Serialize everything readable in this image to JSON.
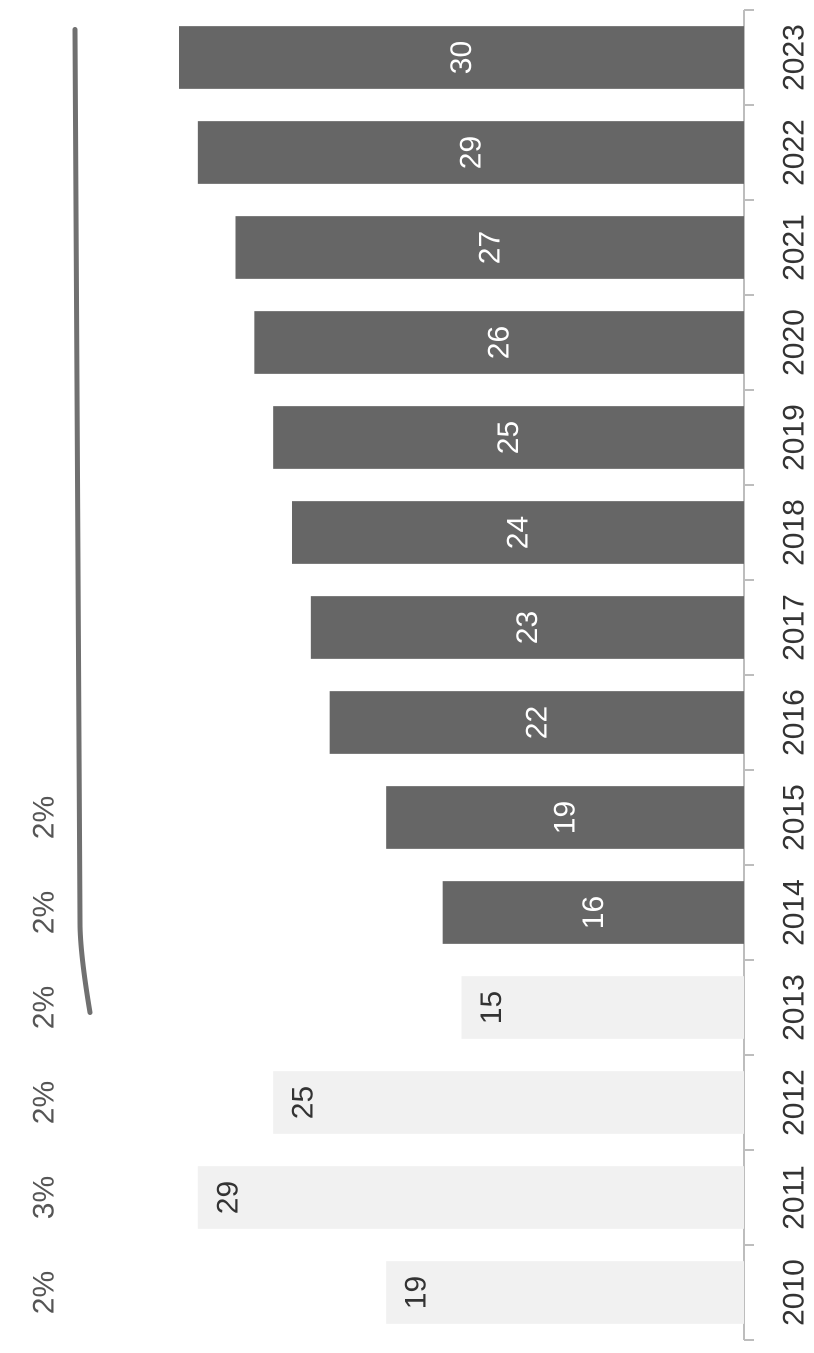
{
  "chart_data": {
    "type": "bar",
    "orientation": "rotated-90",
    "categories": [
      "2010",
      "2011",
      "2012",
      "2013",
      "2014",
      "2015",
      "2016",
      "2017",
      "2018",
      "2019",
      "2020",
      "2021",
      "2022",
      "2023"
    ],
    "series": [
      {
        "values": [
          19,
          29,
          25,
          15,
          16,
          19,
          22,
          23,
          24,
          25,
          26,
          27,
          29,
          30
        ],
        "color": "#666666"
      },
      {
        "values": [
          "2%",
          "3%",
          "2%",
          "2%",
          "2%",
          "2%",
          null,
          null,
          null,
          null,
          null,
          null,
          null,
          null
        ],
        "color": "#707070",
        "style": "line"
      }
    ],
    "faded_categories": [
      "2010",
      "2011",
      "2012",
      "2013"
    ],
    "ylim": [
      0,
      30
    ],
    "grid": false
  }
}
